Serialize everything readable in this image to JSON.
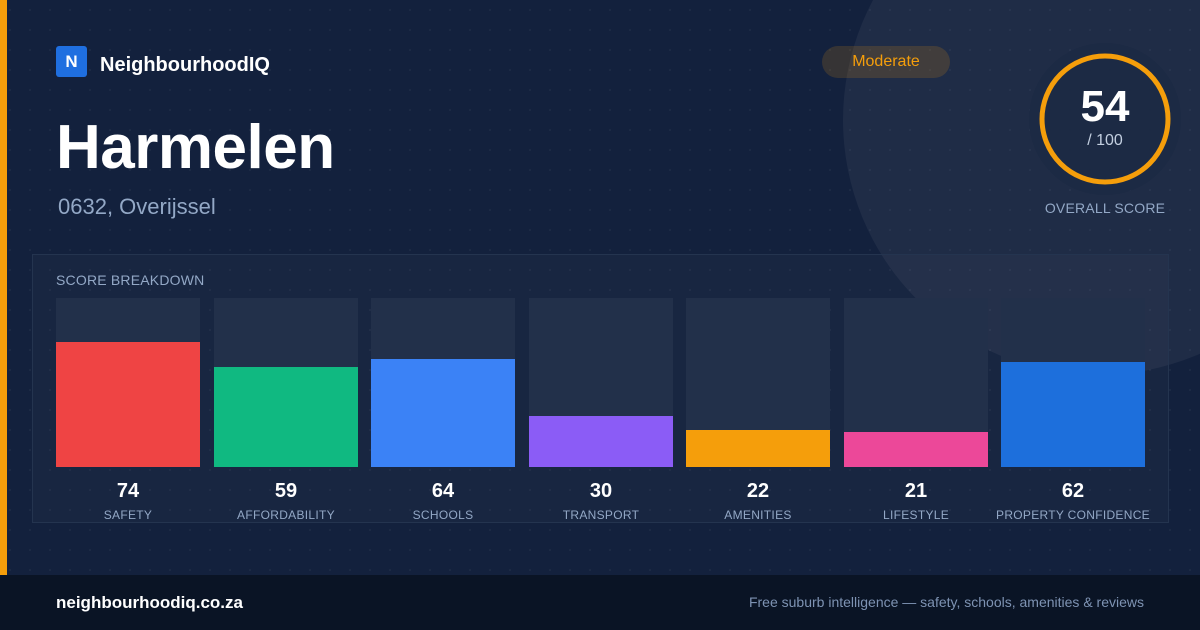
{
  "brand": {
    "logo_letter": "N",
    "name": "NeighbourhoodIQ",
    "color": "#1f6fe0"
  },
  "suburb": {
    "name": "Harmelen",
    "location": "0632, Overijssel"
  },
  "rating_badge": {
    "label": "Moderate",
    "color": "#f59e0b"
  },
  "overall": {
    "score": "54",
    "denominator": "/ 100",
    "caption": "OVERALL SCORE",
    "fraction": 0.54,
    "ring_color": "#f59e0b"
  },
  "breakdown": {
    "title": "SCORE BREAKDOWN",
    "max": 100,
    "items": [
      {
        "label": "SAFETY",
        "value": 74,
        "color": "#ef4444"
      },
      {
        "label": "AFFORDABILITY",
        "value": 59,
        "color": "#10b981"
      },
      {
        "label": "SCHOOLS",
        "value": 64,
        "color": "#3b82f6"
      },
      {
        "label": "TRANSPORT",
        "value": 30,
        "color": "#8b5cf6"
      },
      {
        "label": "AMENITIES",
        "value": 22,
        "color": "#f59e0b"
      },
      {
        "label": "LIFESTYLE",
        "value": 21,
        "color": "#ec4899"
      },
      {
        "label": "PROPERTY CONFIDENCE",
        "value": 62,
        "color": "#1d6fdc"
      }
    ]
  },
  "footer": {
    "url": "neighbourhoodiq.co.za",
    "tagline": "Free suburb intelligence — safety, schools, amenities & reviews"
  }
}
